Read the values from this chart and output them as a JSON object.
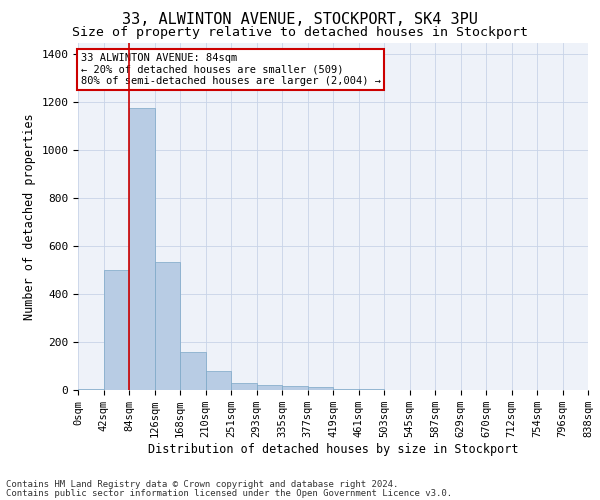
{
  "title1": "33, ALWINTON AVENUE, STOCKPORT, SK4 3PU",
  "title2": "Size of property relative to detached houses in Stockport",
  "xlabel": "Distribution of detached houses by size in Stockport",
  "ylabel": "Number of detached properties",
  "bar_values": [
    5,
    500,
    1175,
    535,
    160,
    80,
    30,
    22,
    18,
    12,
    5,
    3,
    2,
    1,
    1,
    1,
    0,
    0,
    0,
    0
  ],
  "bin_labels": [
    "0sqm",
    "42sqm",
    "84sqm",
    "126sqm",
    "168sqm",
    "210sqm",
    "251sqm",
    "293sqm",
    "335sqm",
    "377sqm",
    "419sqm",
    "461sqm",
    "503sqm",
    "545sqm",
    "587sqm",
    "629sqm",
    "670sqm",
    "712sqm",
    "754sqm",
    "796sqm",
    "838sqm"
  ],
  "bar_color": "#b8cce4",
  "bar_edge_color": "#7ba7c7",
  "red_line_x": 2,
  "annotation_text": "33 ALWINTON AVENUE: 84sqm\n← 20% of detached houses are smaller (509)\n80% of semi-detached houses are larger (2,004) →",
  "annotation_box_color": "#ffffff",
  "annotation_box_edge": "#cc0000",
  "ylim": [
    0,
    1450
  ],
  "yticks": [
    0,
    200,
    400,
    600,
    800,
    1000,
    1200,
    1400
  ],
  "footer1": "Contains HM Land Registry data © Crown copyright and database right 2024.",
  "footer2": "Contains public sector information licensed under the Open Government Licence v3.0.",
  "bg_color": "#ffffff",
  "grid_color": "#c8d4e8",
  "title1_fontsize": 11,
  "title2_fontsize": 9.5,
  "axis_label_fontsize": 8.5,
  "tick_fontsize": 7.5,
  "footer_fontsize": 6.5,
  "annotation_fontsize": 7.5
}
